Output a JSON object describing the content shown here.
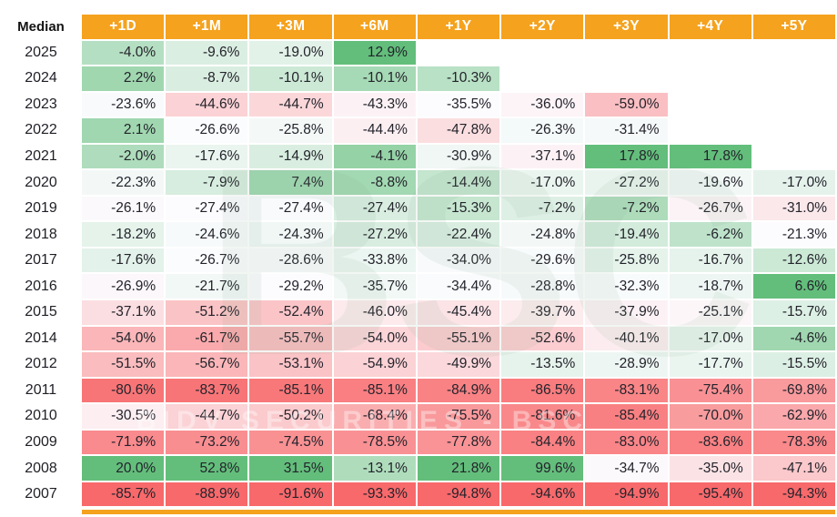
{
  "chart_data": {
    "type": "heatmap",
    "corner_label": "Median",
    "columns": [
      "+1D",
      "+1M",
      "+3M",
      "+6M",
      "+1Y",
      "+2Y",
      "+3Y",
      "+4Y",
      "+5Y"
    ],
    "rows": [
      {
        "year": "2025",
        "values": [
          -4.0,
          -9.6,
          -19.0,
          12.9,
          null,
          null,
          null,
          null,
          null
        ]
      },
      {
        "year": "2024",
        "values": [
          2.2,
          -8.7,
          -10.1,
          -10.1,
          -10.3,
          null,
          null,
          null,
          null
        ]
      },
      {
        "year": "2023",
        "values": [
          -23.6,
          -44.6,
          -44.7,
          -43.3,
          -35.5,
          -36.0,
          -59.0,
          null,
          null
        ]
      },
      {
        "year": "2022",
        "values": [
          2.1,
          -26.6,
          -25.8,
          -44.4,
          -47.8,
          -26.3,
          -31.4,
          null,
          null
        ]
      },
      {
        "year": "2021",
        "values": [
          -2.0,
          -17.6,
          -14.9,
          -4.1,
          -30.9,
          -37.1,
          17.8,
          17.8,
          null
        ]
      },
      {
        "year": "2020",
        "values": [
          -22.3,
          -7.9,
          7.4,
          -8.8,
          -14.4,
          -17.0,
          -27.2,
          -19.6,
          -17.0
        ]
      },
      {
        "year": "2019",
        "values": [
          -26.1,
          -27.4,
          -27.4,
          -27.4,
          -15.3,
          -7.2,
          -7.2,
          -26.7,
          -31.0
        ]
      },
      {
        "year": "2018",
        "values": [
          -18.2,
          -24.6,
          -24.3,
          -27.2,
          -22.4,
          -24.8,
          -19.4,
          -6.2,
          -21.3
        ]
      },
      {
        "year": "2017",
        "values": [
          -17.6,
          -26.7,
          -28.6,
          -33.8,
          -34.0,
          -29.6,
          -25.8,
          -16.7,
          -12.6
        ]
      },
      {
        "year": "2016",
        "values": [
          -26.9,
          -21.7,
          -29.2,
          -35.7,
          -34.4,
          -28.8,
          -32.3,
          -18.7,
          6.6
        ]
      },
      {
        "year": "2015",
        "values": [
          -37.1,
          -51.2,
          -52.4,
          -46.0,
          -45.4,
          -39.7,
          -37.9,
          -25.1,
          -15.7
        ]
      },
      {
        "year": "2014",
        "values": [
          -54.0,
          -61.7,
          -55.7,
          -54.0,
          -55.1,
          -52.6,
          -40.1,
          -17.0,
          -4.6
        ]
      },
      {
        "year": "2012",
        "values": [
          -51.5,
          -56.7,
          -53.1,
          -54.9,
          -49.9,
          -13.5,
          -28.9,
          -17.7,
          -15.5
        ]
      },
      {
        "year": "2011",
        "values": [
          -80.6,
          -83.7,
          -85.1,
          -85.1,
          -84.9,
          -86.5,
          -83.1,
          -75.4,
          -69.8
        ]
      },
      {
        "year": "2010",
        "values": [
          -30.5,
          -44.7,
          -50.2,
          -68.4,
          -75.5,
          -81.6,
          -85.4,
          -70.0,
          -62.9
        ]
      },
      {
        "year": "2009",
        "values": [
          -71.9,
          -73.2,
          -74.5,
          -78.5,
          -77.8,
          -84.4,
          -83.0,
          -83.6,
          -78.3
        ]
      },
      {
        "year": "2008",
        "values": [
          20.0,
          52.8,
          31.5,
          -13.1,
          21.8,
          99.6,
          -34.7,
          -35.0,
          -47.1
        ]
      },
      {
        "year": "2007",
        "values": [
          -85.7,
          -88.9,
          -91.6,
          -93.3,
          -94.8,
          -94.6,
          -94.9,
          -95.4,
          -94.3
        ]
      }
    ],
    "value_suffix": "%",
    "value_decimals": 1,
    "color_scale": {
      "scope": "per-column",
      "anchors": "min / median / max",
      "min_color": "#F8696B",
      "mid_color": "#FCFCFF",
      "max_color": "#63BE7B"
    },
    "header_bg": "#F5A21E",
    "header_text_color": "#FFFFFF",
    "grid": "2px white gaps between cells",
    "legend_position": "none"
  },
  "watermark": {
    "big_text": "BSC",
    "line_text": "BIDV SECURITIES - BSC"
  },
  "footer": {
    "accent_bar_color": "#F5A21E"
  }
}
